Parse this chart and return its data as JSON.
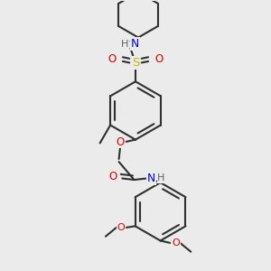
{
  "bg_color": "#ebebeb",
  "bond_color": "#303030",
  "N_color": "#0000ee",
  "O_color": "#dd0000",
  "S_color": "#bbbb00",
  "H_color": "#606060",
  "lw": 1.5,
  "fig_w": 3.0,
  "fig_h": 3.0,
  "dpi": 100,
  "xlim": [
    0.1,
    0.9
  ],
  "ylim": [
    0.03,
    1.0
  ]
}
